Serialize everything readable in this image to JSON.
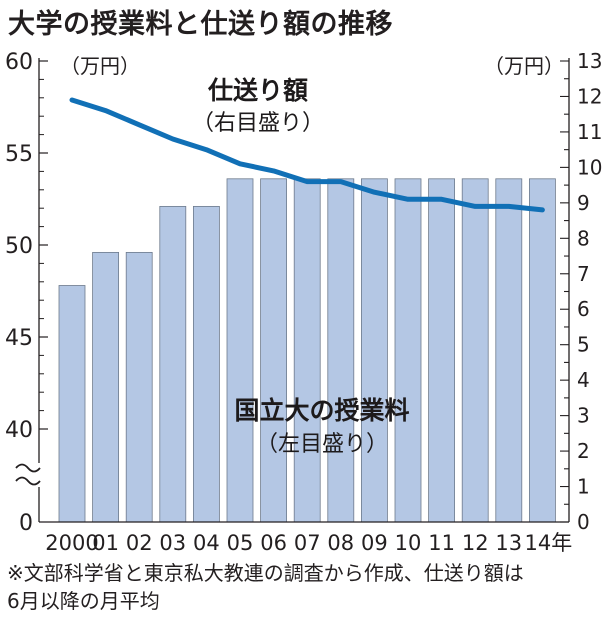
{
  "title": "大学の授業料と仕送り額の推移",
  "left_axis": {
    "unit": "（万円）",
    "ticks": [
      "60",
      "55",
      "50",
      "45",
      "40",
      "0"
    ]
  },
  "right_axis": {
    "unit": "（万円）",
    "ticks": [
      "13",
      "12",
      "11",
      "10",
      "9",
      "8",
      "7",
      "6",
      "5",
      "4",
      "3",
      "2",
      "1",
      "0"
    ]
  },
  "line_label": {
    "name": "仕送り額",
    "axis": "（右目盛り）"
  },
  "bar_label": {
    "name": "国立大の授業料",
    "axis": "（左目盛り）"
  },
  "note_lines": [
    "※文部科学省と東京私大教連の調査から作成、仕送り額は",
    "6月以降の月平均"
  ],
  "colors": {
    "bar": "#b4c7e4",
    "bar_border": "#6d7a8c",
    "line": "#1170b6",
    "axis": "#231f20"
  },
  "chart_data": {
    "type": "bar",
    "categories": [
      "2000",
      "01",
      "02",
      "03",
      "04",
      "05",
      "06",
      "07",
      "08",
      "09",
      "10",
      "11",
      "12",
      "13",
      "14年"
    ],
    "series": [
      {
        "name": "国立大の授業料",
        "type": "bar",
        "axis": "left",
        "values": [
          47.8,
          49.6,
          49.6,
          52.1,
          52.1,
          53.6,
          53.6,
          53.6,
          53.6,
          53.6,
          53.6,
          53.6,
          53.6,
          53.6,
          53.6
        ]
      },
      {
        "name": "仕送り額",
        "type": "line",
        "axis": "right",
        "values": [
          11.9,
          11.6,
          11.2,
          10.8,
          10.5,
          10.1,
          9.9,
          9.6,
          9.6,
          9.3,
          9.1,
          9.1,
          8.9,
          8.9,
          8.8
        ]
      }
    ],
    "left_axis_range": [
      0,
      60
    ],
    "left_axis_break": [
      0,
      40
    ],
    "right_axis_range": [
      0,
      13
    ],
    "grid": false,
    "legend": "inline labels"
  }
}
